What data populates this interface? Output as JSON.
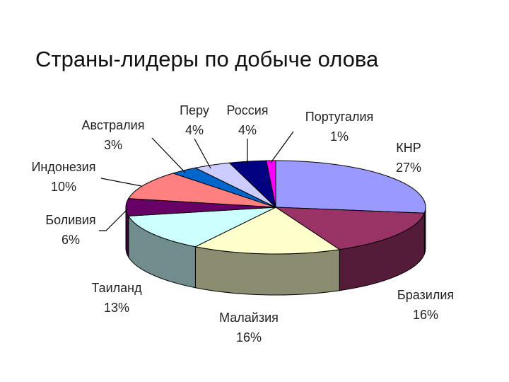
{
  "chart_data": {
    "type": "pie3d",
    "title": "Страны-лидеры по добыче олова",
    "categories": [
      "КНР",
      "Бразилия",
      "Малайзия",
      "Таиланд",
      "Боливия",
      "Индонезия",
      "Австралия",
      "Перу",
      "Россия",
      "Португалия"
    ],
    "values": [
      27,
      16,
      16,
      13,
      6,
      10,
      3,
      4,
      4,
      1
    ],
    "value_labels": [
      "27%",
      "16%",
      "16%",
      "13%",
      "6%",
      "10%",
      "3%",
      "4%",
      "4%",
      "1%"
    ],
    "colors": [
      "#9999ff",
      "#993366",
      "#ffffcc",
      "#ccffff",
      "#660066",
      "#ff8080",
      "#0066cc",
      "#ccccff",
      "#000080",
      "#ff00ff"
    ]
  }
}
